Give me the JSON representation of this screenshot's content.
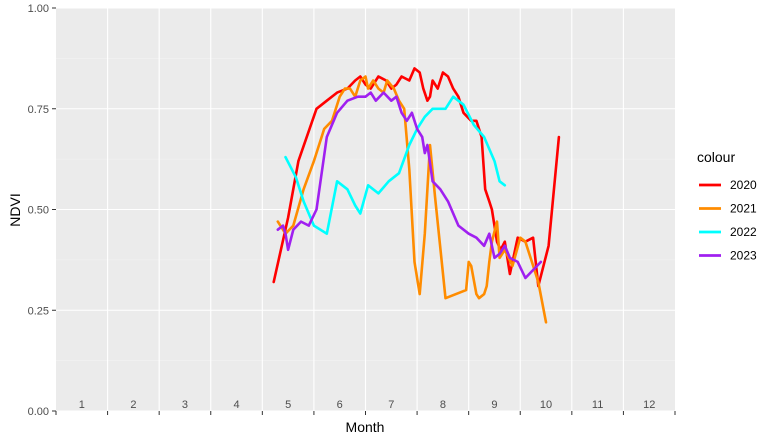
{
  "chart_data": {
    "type": "line",
    "xlabel": "Month",
    "ylabel": "NDVI",
    "xlim": [
      0.5,
      12.5
    ],
    "ylim": [
      0,
      1
    ],
    "x_month_labels": [
      "1",
      "2",
      "3",
      "4",
      "5",
      "6",
      "7",
      "8",
      "9",
      "10",
      "11",
      "12"
    ],
    "y_ticks": [
      0,
      0.25,
      0.5,
      0.75,
      1
    ],
    "y_tick_labels": [
      "0.00",
      "0.25",
      "0.50",
      "0.75",
      "1.00"
    ],
    "grid": true,
    "legend": {
      "title": "colour",
      "position": "right"
    },
    "series": [
      {
        "name": "2020",
        "color": "#FF0000",
        "x": [
          4.72,
          5.0,
          5.2,
          5.55,
          5.75,
          5.95,
          6.15,
          6.3,
          6.4,
          6.5,
          6.6,
          6.75,
          6.9,
          7.0,
          7.1,
          7.2,
          7.35,
          7.45,
          7.55,
          7.62,
          7.7,
          7.75,
          7.8,
          7.9,
          8.0,
          8.1,
          8.2,
          8.3,
          8.4,
          8.55,
          8.65,
          8.75,
          8.82,
          8.9,
          8.95,
          9.05,
          9.12,
          9.2,
          9.3,
          9.45,
          9.6,
          9.75,
          9.85,
          10.05,
          10.25
        ],
        "y": [
          0.32,
          0.48,
          0.62,
          0.75,
          0.77,
          0.79,
          0.8,
          0.82,
          0.83,
          0.81,
          0.8,
          0.83,
          0.82,
          0.8,
          0.81,
          0.83,
          0.82,
          0.85,
          0.84,
          0.8,
          0.77,
          0.78,
          0.82,
          0.8,
          0.84,
          0.83,
          0.8,
          0.78,
          0.74,
          0.72,
          0.72,
          0.68,
          0.55,
          0.52,
          0.5,
          0.42,
          0.4,
          0.42,
          0.34,
          0.43,
          0.42,
          0.43,
          0.31,
          0.41,
          0.68
        ]
      },
      {
        "name": "2021",
        "color": "#FF8C00",
        "x": [
          4.8,
          4.95,
          5.1,
          5.3,
          5.5,
          5.7,
          5.85,
          6.0,
          6.1,
          6.2,
          6.3,
          6.4,
          6.5,
          6.55,
          6.65,
          6.75,
          6.85,
          6.92,
          7.05,
          7.15,
          7.25,
          7.35,
          7.45,
          7.55,
          7.65,
          7.75,
          7.85,
          8.05,
          8.45,
          8.5,
          8.55,
          8.65,
          8.7,
          8.8,
          8.85,
          8.9,
          8.95,
          9.05,
          9.1,
          9.2,
          9.35,
          9.5,
          9.6,
          9.7,
          9.85,
          10.0
        ],
        "y": [
          0.47,
          0.44,
          0.46,
          0.55,
          0.62,
          0.7,
          0.72,
          0.78,
          0.8,
          0.8,
          0.78,
          0.82,
          0.83,
          0.8,
          0.82,
          0.8,
          0.79,
          0.82,
          0.8,
          0.77,
          0.75,
          0.6,
          0.37,
          0.29,
          0.44,
          0.66,
          0.53,
          0.28,
          0.3,
          0.37,
          0.36,
          0.29,
          0.28,
          0.29,
          0.31,
          0.37,
          0.42,
          0.47,
          0.38,
          0.4,
          0.36,
          0.43,
          0.42,
          0.38,
          0.32,
          0.22
        ]
      },
      {
        "name": "2022",
        "color": "#00FFFF",
        "x": [
          4.95,
          5.15,
          5.3,
          5.5,
          5.75,
          5.95,
          6.15,
          6.3,
          6.4,
          6.55,
          6.75,
          6.95,
          7.15,
          7.35,
          7.5,
          7.65,
          7.8,
          7.9,
          8.05,
          8.2,
          8.4,
          8.6,
          8.8,
          9.0,
          9.1,
          9.2
        ],
        "y": [
          0.63,
          0.58,
          0.52,
          0.46,
          0.44,
          0.57,
          0.55,
          0.51,
          0.49,
          0.56,
          0.54,
          0.57,
          0.59,
          0.66,
          0.7,
          0.73,
          0.75,
          0.75,
          0.75,
          0.78,
          0.76,
          0.71,
          0.68,
          0.62,
          0.57,
          0.56
        ]
      },
      {
        "name": "2023",
        "color": "#A020F0",
        "x": [
          4.8,
          4.9,
          4.95,
          5.0,
          5.1,
          5.25,
          5.4,
          5.55,
          5.75,
          5.95,
          6.15,
          6.35,
          6.5,
          6.6,
          6.7,
          6.85,
          7.0,
          7.1,
          7.2,
          7.3,
          7.4,
          7.5,
          7.6,
          7.65,
          7.7,
          7.8,
          7.95,
          8.1,
          8.3,
          8.5,
          8.65,
          8.8,
          8.9,
          9.0,
          9.1,
          9.2,
          9.3,
          9.45,
          9.6,
          9.75,
          9.9
        ],
        "y": [
          0.45,
          0.46,
          0.44,
          0.4,
          0.45,
          0.47,
          0.46,
          0.5,
          0.68,
          0.74,
          0.77,
          0.78,
          0.78,
          0.79,
          0.77,
          0.79,
          0.77,
          0.78,
          0.74,
          0.72,
          0.74,
          0.7,
          0.68,
          0.64,
          0.66,
          0.57,
          0.55,
          0.52,
          0.46,
          0.44,
          0.43,
          0.41,
          0.44,
          0.38,
          0.39,
          0.41,
          0.38,
          0.37,
          0.33,
          0.35,
          0.37
        ]
      }
    ]
  }
}
